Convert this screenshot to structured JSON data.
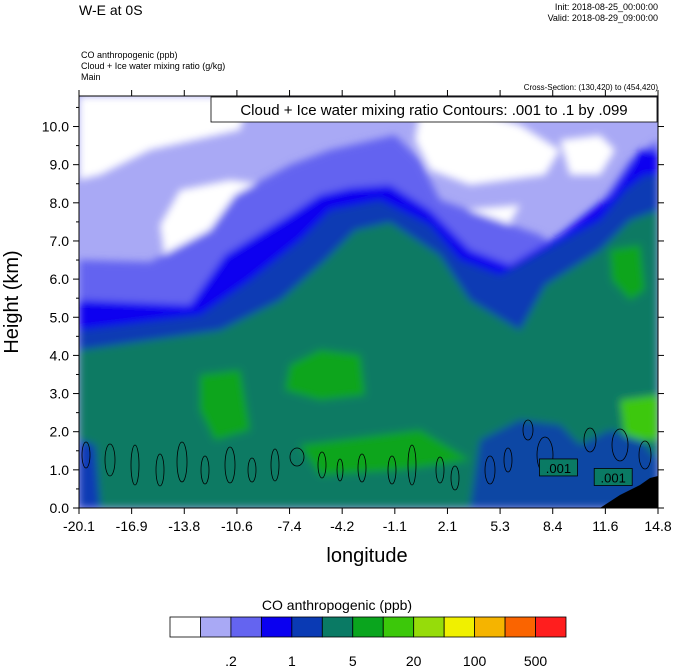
{
  "header": {
    "title": "W-E at 0S",
    "init": "Init: 2018-08-25_00:00:00",
    "valid": "Valid: 2018-08-29_09:00:00",
    "fields": [
      "CO anthropogenic   (ppb)",
      "Cloud + Ice water mixing ratio   (g/kg)",
      "Main"
    ],
    "cross_section": "Cross-Section: (130,420) to (454,420)"
  },
  "chart_data": {
    "type": "heatmap",
    "title": "",
    "xlabel": "longitude",
    "ylabel": "Height (km)",
    "annotation": "Cloud + Ice water mixing ratio Contours: .001 to .1 by .099",
    "xlim": [
      -20.1,
      14.8
    ],
    "ylim": [
      0.0,
      10.8
    ],
    "x_ticks": [
      "-20.1",
      "-16.9",
      "-13.8",
      "-10.6",
      "-7.4",
      "-4.2",
      "-1.1",
      "2.1",
      "5.3",
      "8.4",
      "11.6",
      "14.8"
    ],
    "y_ticks": [
      "0.0",
      "1.0",
      "2.0",
      "3.0",
      "4.0",
      "5.0",
      "6.0",
      "7.0",
      "8.0",
      "9.0",
      "10.0"
    ],
    "contour_labels": [
      {
        "text": ".001",
        "lon": 8.8,
        "height": 1.05
      },
      {
        "text": ".001",
        "lon": 12.1,
        "height": 0.8
      }
    ],
    "colorbar": {
      "title": "CO anthropogenic  (ppb)",
      "colors": [
        "#ffffff",
        "#a9a9f5",
        "#6464f0",
        "#0a00f0",
        "#0a3ab4",
        "#0a7a64",
        "#0aa51e",
        "#3cc80a",
        "#96dc0a",
        "#f0f000",
        "#f5b400",
        "#fa6400",
        "#ff1e1e"
      ],
      "labels": [
        ".2",
        "1",
        "5",
        "20",
        "100",
        "500"
      ]
    }
  }
}
